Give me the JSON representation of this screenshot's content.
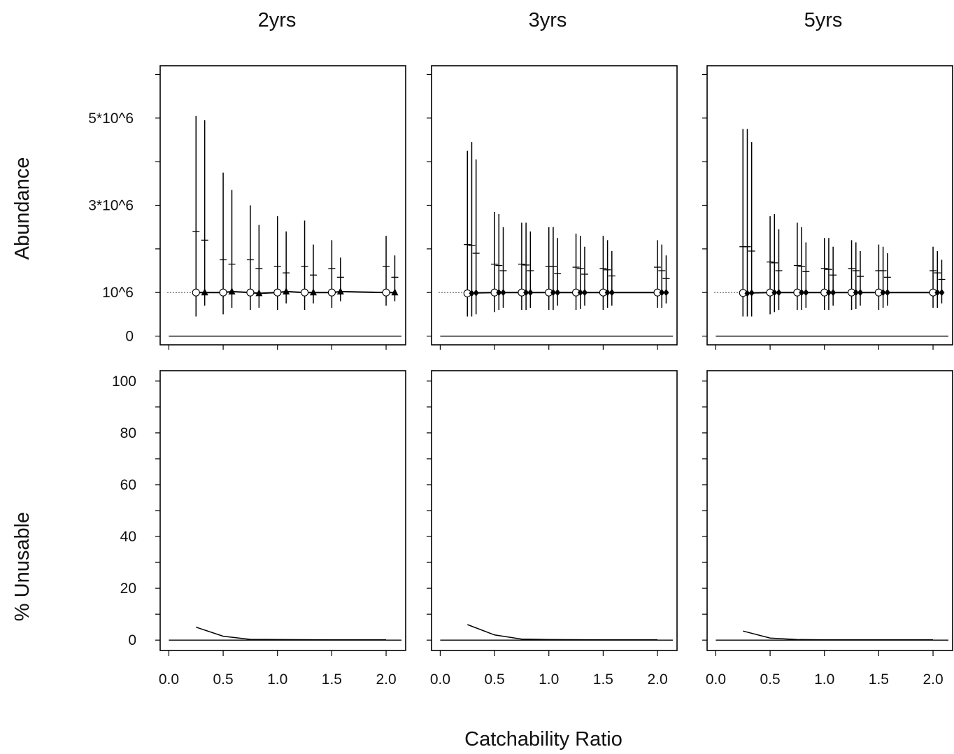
{
  "chart_data": {
    "type": "scatter",
    "column_titles": [
      "2yrs",
      "3yrs",
      "5yrs"
    ],
    "xlabel": "Catchability Ratio",
    "top_ylabel": "Abundance",
    "bottom_ylabel": "% Unusable",
    "x_ticks": [
      "0.0",
      "0.5",
      "1.0",
      "1.5",
      "2.0"
    ],
    "top_y_ticks": [
      {
        "value": 0,
        "label": "0"
      },
      {
        "value": 1000000,
        "label": "10^6"
      },
      {
        "value": 3000000,
        "label": "3*10^6"
      },
      {
        "value": 5000000,
        "label": "5*10^6"
      }
    ],
    "bottom_y_ticks": [
      "0",
      "20",
      "40",
      "60",
      "80",
      "100"
    ],
    "true_abundance": 1000000,
    "xlim": [
      -0.08,
      2.18
    ],
    "top_ylim": [
      -200000,
      6200000
    ],
    "bottom_ylim": [
      -4,
      104
    ],
    "panels": [
      {
        "title": "2yrs",
        "abundance": [
          {
            "x": 0.25,
            "low": 0.45,
            "high": 5.05,
            "median": 2.4,
            "mean": 1.0,
            "marker": "circle"
          },
          {
            "x": 0.33,
            "low": 0.7,
            "high": 4.95,
            "median": 2.2,
            "mean": 1.0,
            "marker": "triangle"
          },
          {
            "x": 0.5,
            "low": 0.5,
            "high": 3.75,
            "median": 1.75,
            "mean": 1.0,
            "marker": "circle"
          },
          {
            "x": 0.58,
            "low": 0.65,
            "high": 3.35,
            "median": 1.65,
            "mean": 1.02,
            "marker": "triangle"
          },
          {
            "x": 0.75,
            "low": 0.6,
            "high": 3.0,
            "median": 1.75,
            "mean": 1.0,
            "marker": "circle"
          },
          {
            "x": 0.83,
            "low": 0.65,
            "high": 2.55,
            "median": 1.55,
            "mean": 0.98,
            "marker": "triangle"
          },
          {
            "x": 1.0,
            "low": 0.6,
            "high": 2.75,
            "median": 1.6,
            "mean": 1.0,
            "marker": "circle"
          },
          {
            "x": 1.08,
            "low": 0.75,
            "high": 2.4,
            "median": 1.45,
            "mean": 1.02,
            "marker": "triangle"
          },
          {
            "x": 1.25,
            "low": 0.6,
            "high": 2.65,
            "median": 1.6,
            "mean": 1.0,
            "marker": "circle"
          },
          {
            "x": 1.33,
            "low": 0.75,
            "high": 2.1,
            "median": 1.4,
            "mean": 1.0,
            "marker": "triangle"
          },
          {
            "x": 1.5,
            "low": 0.65,
            "high": 2.2,
            "median": 1.55,
            "mean": 1.0,
            "marker": "circle"
          },
          {
            "x": 1.58,
            "low": 0.8,
            "high": 1.8,
            "median": 1.35,
            "mean": 1.02,
            "marker": "triangle"
          },
          {
            "x": 2.0,
            "low": 0.7,
            "high": 2.3,
            "median": 1.6,
            "mean": 1.0,
            "marker": "circle"
          },
          {
            "x": 2.08,
            "low": 0.8,
            "high": 1.85,
            "median": 1.35,
            "mean": 1.0,
            "marker": "triangle"
          }
        ],
        "unusable_x": [
          0.25,
          0.5,
          0.75,
          1.0,
          1.5,
          2.0
        ],
        "unusable_pct": [
          5,
          1.5,
          0.3,
          0.2,
          0.1,
          0.1
        ]
      },
      {
        "title": "3yrs",
        "abundance": [
          {
            "x": 0.25,
            "low": 0.45,
            "high": 4.25,
            "median": 2.1,
            "mean": 0.98,
            "marker": "circle"
          },
          {
            "x": 0.29,
            "low": 0.45,
            "high": 4.45,
            "median": 2.08,
            "mean": 0.98,
            "marker": "diamond"
          },
          {
            "x": 0.33,
            "low": 0.5,
            "high": 4.05,
            "median": 1.9,
            "mean": 0.99,
            "marker": "diamond"
          },
          {
            "x": 0.5,
            "low": 0.55,
            "high": 2.85,
            "median": 1.65,
            "mean": 1.0,
            "marker": "circle"
          },
          {
            "x": 0.54,
            "low": 0.6,
            "high": 2.8,
            "median": 1.62,
            "mean": 1.0,
            "marker": "diamond"
          },
          {
            "x": 0.58,
            "low": 0.65,
            "high": 2.5,
            "median": 1.5,
            "mean": 1.0,
            "marker": "diamond"
          },
          {
            "x": 0.75,
            "low": 0.6,
            "high": 2.6,
            "median": 1.65,
            "mean": 1.0,
            "marker": "circle"
          },
          {
            "x": 0.79,
            "low": 0.6,
            "high": 2.6,
            "median": 1.63,
            "mean": 1.0,
            "marker": "diamond"
          },
          {
            "x": 0.83,
            "low": 0.65,
            "high": 2.4,
            "median": 1.5,
            "mean": 1.0,
            "marker": "diamond"
          },
          {
            "x": 1.0,
            "low": 0.6,
            "high": 2.5,
            "median": 1.6,
            "mean": 1.0,
            "marker": "circle"
          },
          {
            "x": 1.04,
            "low": 0.6,
            "high": 2.5,
            "median": 1.6,
            "mean": 1.0,
            "marker": "diamond"
          },
          {
            "x": 1.08,
            "low": 0.7,
            "high": 2.25,
            "median": 1.43,
            "mean": 1.0,
            "marker": "diamond"
          },
          {
            "x": 1.25,
            "low": 0.6,
            "high": 2.35,
            "median": 1.58,
            "mean": 1.0,
            "marker": "circle"
          },
          {
            "x": 1.29,
            "low": 0.62,
            "high": 2.3,
            "median": 1.55,
            "mean": 1.0,
            "marker": "diamond"
          },
          {
            "x": 1.33,
            "low": 0.7,
            "high": 2.05,
            "median": 1.42,
            "mean": 1.0,
            "marker": "diamond"
          },
          {
            "x": 1.5,
            "low": 0.6,
            "high": 2.3,
            "median": 1.55,
            "mean": 1.0,
            "marker": "circle"
          },
          {
            "x": 1.54,
            "low": 0.65,
            "high": 2.2,
            "median": 1.52,
            "mean": 1.0,
            "marker": "diamond"
          },
          {
            "x": 1.58,
            "low": 0.7,
            "high": 1.95,
            "median": 1.38,
            "mean": 1.0,
            "marker": "diamond"
          },
          {
            "x": 2.0,
            "low": 0.65,
            "high": 2.2,
            "median": 1.58,
            "mean": 1.0,
            "marker": "circle"
          },
          {
            "x": 2.04,
            "low": 0.65,
            "high": 2.1,
            "median": 1.5,
            "mean": 1.0,
            "marker": "diamond"
          },
          {
            "x": 2.08,
            "low": 0.75,
            "high": 1.85,
            "median": 1.32,
            "mean": 1.0,
            "marker": "diamond"
          }
        ],
        "unusable_x": [
          0.25,
          0.5,
          0.75,
          1.0,
          1.5,
          2.0
        ],
        "unusable_pct": [
          6,
          2,
          0.4,
          0.2,
          0.1,
          0.1
        ]
      },
      {
        "title": "5yrs",
        "abundance": [
          {
            "x": 0.25,
            "low": 0.45,
            "high": 4.75,
            "median": 2.05,
            "mean": 0.99,
            "marker": "circle"
          },
          {
            "x": 0.29,
            "low": 0.45,
            "high": 4.75,
            "median": 2.05,
            "mean": 0.98,
            "marker": "diamond"
          },
          {
            "x": 0.33,
            "low": 0.45,
            "high": 4.45,
            "median": 1.95,
            "mean": 0.99,
            "marker": "diamond"
          },
          {
            "x": 0.5,
            "low": 0.5,
            "high": 2.75,
            "median": 1.7,
            "mean": 1.0,
            "marker": "circle"
          },
          {
            "x": 0.54,
            "low": 0.55,
            "high": 2.8,
            "median": 1.68,
            "mean": 1.0,
            "marker": "diamond"
          },
          {
            "x": 0.58,
            "low": 0.6,
            "high": 2.45,
            "median": 1.5,
            "mean": 1.0,
            "marker": "diamond"
          },
          {
            "x": 0.75,
            "low": 0.6,
            "high": 2.6,
            "median": 1.62,
            "mean": 1.0,
            "marker": "circle"
          },
          {
            "x": 0.79,
            "low": 0.6,
            "high": 2.5,
            "median": 1.6,
            "mean": 1.0,
            "marker": "diamond"
          },
          {
            "x": 0.83,
            "low": 0.65,
            "high": 2.15,
            "median": 1.48,
            "mean": 1.0,
            "marker": "diamond"
          },
          {
            "x": 1.0,
            "low": 0.6,
            "high": 2.25,
            "median": 1.55,
            "mean": 1.0,
            "marker": "circle"
          },
          {
            "x": 1.04,
            "low": 0.6,
            "high": 2.25,
            "median": 1.53,
            "mean": 1.0,
            "marker": "diamond"
          },
          {
            "x": 1.08,
            "low": 0.7,
            "high": 2.05,
            "median": 1.4,
            "mean": 1.0,
            "marker": "diamond"
          },
          {
            "x": 1.25,
            "low": 0.6,
            "high": 2.2,
            "median": 1.55,
            "mean": 1.0,
            "marker": "circle"
          },
          {
            "x": 1.29,
            "low": 0.62,
            "high": 2.15,
            "median": 1.5,
            "mean": 1.0,
            "marker": "diamond"
          },
          {
            "x": 1.33,
            "low": 0.7,
            "high": 1.95,
            "median": 1.37,
            "mean": 1.0,
            "marker": "diamond"
          },
          {
            "x": 1.5,
            "low": 0.6,
            "high": 2.1,
            "median": 1.5,
            "mean": 1.0,
            "marker": "circle"
          },
          {
            "x": 1.54,
            "low": 0.65,
            "high": 2.05,
            "median": 1.5,
            "mean": 1.0,
            "marker": "diamond"
          },
          {
            "x": 1.58,
            "low": 0.7,
            "high": 1.9,
            "median": 1.35,
            "mean": 1.0,
            "marker": "diamond"
          },
          {
            "x": 2.0,
            "low": 0.65,
            "high": 2.05,
            "median": 1.5,
            "mean": 1.0,
            "marker": "circle"
          },
          {
            "x": 2.04,
            "low": 0.65,
            "high": 1.95,
            "median": 1.45,
            "mean": 1.0,
            "marker": "diamond"
          },
          {
            "x": 2.08,
            "low": 0.75,
            "high": 1.75,
            "median": 1.3,
            "mean": 1.0,
            "marker": "diamond"
          }
        ],
        "unusable_x": [
          0.25,
          0.5,
          0.75,
          1.0,
          1.5,
          2.0
        ],
        "unusable_pct": [
          3.5,
          0.8,
          0.2,
          0.1,
          0.1,
          0.1
        ]
      }
    ],
    "abundance_units_note_scale": 1000000,
    "grid": false,
    "legend": "none"
  }
}
